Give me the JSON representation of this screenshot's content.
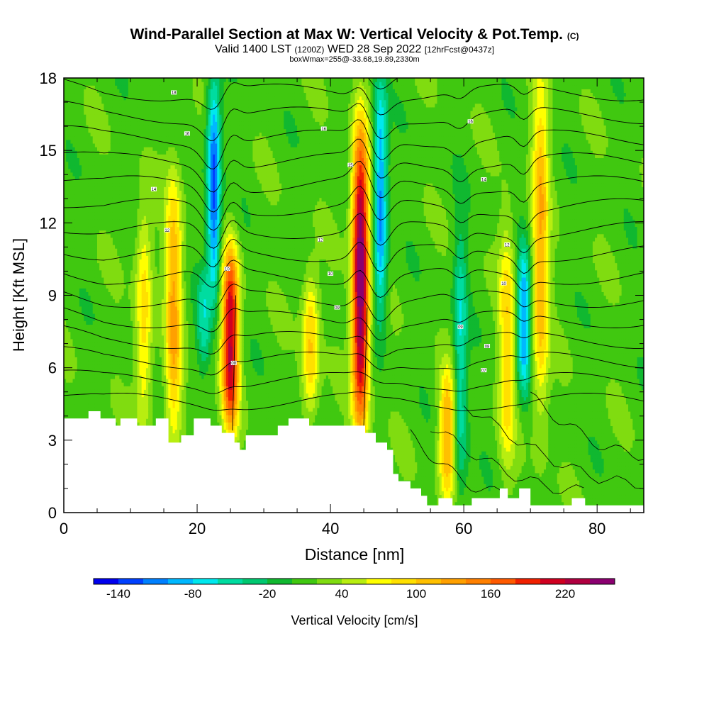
{
  "header": {
    "title": "Wind-Parallel Section at Max W: Vertical Velocity & Pot.Temp.",
    "copyright": "(C)",
    "subtitle_valid": "Valid 1400 LST",
    "subtitle_z": "(1200Z)",
    "subtitle_date": "WED 28 Sep 2022",
    "subtitle_fcst": "[12hrFcst@0437z]",
    "box_info": "boxWmax=255@-33.68,19.89,2330m"
  },
  "chart_data": {
    "type": "heatmap",
    "xlabel": "Distance [nm]",
    "ylabel": "Height [Kft MSL]",
    "xlim": [
      0,
      87
    ],
    "ylim": [
      0,
      18
    ],
    "x_ticks": [
      "0",
      "20",
      "40",
      "60",
      "80"
    ],
    "y_ticks": [
      "0",
      "3",
      "6",
      "9",
      "12",
      "15",
      "18"
    ],
    "colorbar": {
      "label": "Vertical Velocity [cm/s]",
      "tick_labels": [
        "-140",
        "-80",
        "-20",
        "40",
        "100",
        "160",
        "220"
      ],
      "levels": [
        -160,
        -140,
        -120,
        -100,
        -80,
        -60,
        -40,
        -20,
        0,
        20,
        40,
        60,
        80,
        100,
        120,
        140,
        160,
        180,
        200,
        220,
        240,
        260
      ],
      "colors": [
        "#0000ee",
        "#0040ff",
        "#0080ff",
        "#00b8ff",
        "#00e8ee",
        "#00dca0",
        "#00c870",
        "#10b830",
        "#40c810",
        "#80dc10",
        "#b8ee10",
        "#ffff00",
        "#ffe000",
        "#ffc000",
        "#ffa000",
        "#ff8000",
        "#ff5a00",
        "#f02000",
        "#d00020",
        "#b00040",
        "#8b0070"
      ]
    },
    "updraft_cores": [
      {
        "x": 12,
        "z_bottom": 3.6,
        "z_top": 12.5,
        "w_max": 80
      },
      {
        "x": 16.5,
        "z_bottom": 3.2,
        "z_top": 14,
        "w_max": 110
      },
      {
        "x": 25,
        "z_bottom": 3.4,
        "z_top": 11,
        "w_max": 210
      },
      {
        "x": 37,
        "z_bottom": 4,
        "z_top": 10,
        "w_max": 90
      },
      {
        "x": 44.5,
        "z_bottom": 3.4,
        "z_top": 16,
        "w_max": 255
      },
      {
        "x": 57.5,
        "z_bottom": 0.5,
        "z_top": 6,
        "w_max": 110
      },
      {
        "x": 66.5,
        "z_bottom": 2,
        "z_top": 12,
        "w_max": 80
      },
      {
        "x": 71.5,
        "z_bottom": 4,
        "z_top": 18,
        "w_max": 105
      }
    ],
    "downdraft_cores": [
      {
        "x": 22.5,
        "z_bottom": 9,
        "z_top": 18,
        "w_min": -140
      },
      {
        "x": 47.5,
        "z_bottom": 8,
        "z_top": 18,
        "w_min": -120
      },
      {
        "x": 21,
        "z_bottom": 6,
        "z_top": 10,
        "w_min": -60
      },
      {
        "x": 59.5,
        "z_bottom": 0.5,
        "z_top": 12,
        "w_min": -70
      },
      {
        "x": 69,
        "z_bottom": 5,
        "z_top": 11,
        "w_min": -110
      }
    ],
    "theta_contour_labels": [
      {
        "x": 16.5,
        "z": 17.4,
        "text": "18"
      },
      {
        "x": 18.5,
        "z": 15.7,
        "text": "16"
      },
      {
        "x": 13.5,
        "z": 13.4,
        "text": "14"
      },
      {
        "x": 15.5,
        "z": 11.7,
        "text": "12"
      },
      {
        "x": 24.5,
        "z": 10.1,
        "text": "10"
      },
      {
        "x": 25.5,
        "z": 6.2,
        "text": "08"
      },
      {
        "x": 39,
        "z": 15.9,
        "text": "16"
      },
      {
        "x": 43,
        "z": 14.4,
        "text": "15"
      },
      {
        "x": 38.5,
        "z": 11.3,
        "text": "12"
      },
      {
        "x": 40,
        "z": 9.9,
        "text": "10"
      },
      {
        "x": 41,
        "z": 8.5,
        "text": "09"
      },
      {
        "x": 61,
        "z": 16.2,
        "text": "16"
      },
      {
        "x": 63,
        "z": 13.8,
        "text": "14"
      },
      {
        "x": 66.5,
        "z": 11.1,
        "text": "12"
      },
      {
        "x": 66,
        "z": 9.5,
        "text": "10"
      },
      {
        "x": 59.5,
        "z": 7.7,
        "text": "09"
      },
      {
        "x": 63.5,
        "z": 6.9,
        "text": "08"
      },
      {
        "x": 63,
        "z": 5.9,
        "text": "07"
      }
    ]
  }
}
